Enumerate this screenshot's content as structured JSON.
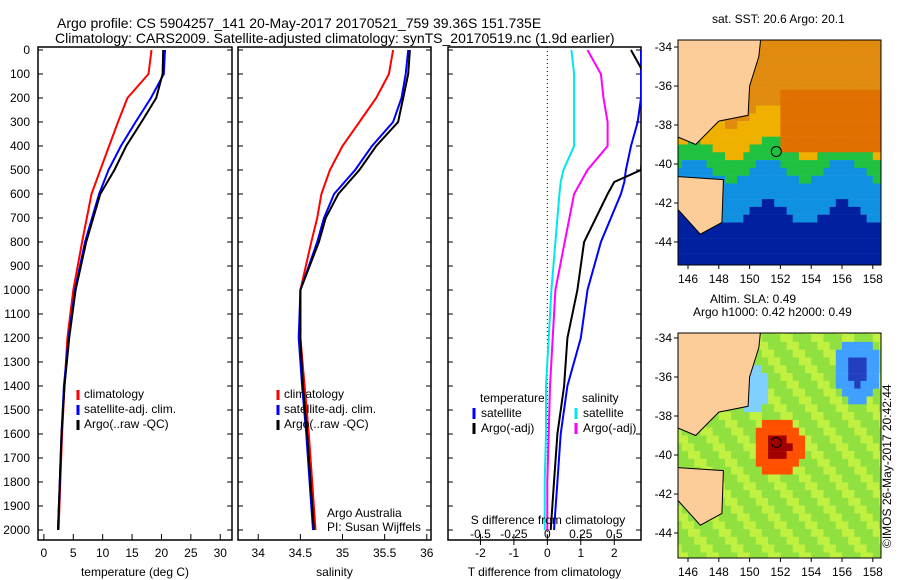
{
  "title_line1": "Argo profile: CS 5904257_141 20-May-2017 20170521_759 39.36S 151.735E",
  "title_line2": "Climatology: CARS2009. Satellite-adjusted climatology: synTS_20170519.nc (1.9d earlier)",
  "colors": {
    "climatology": "#ff0000",
    "satellite": "#0000ff",
    "argo": "#000000",
    "sal_satellite": "#00e5ee",
    "sal_argo": "#ff00ff"
  },
  "chart_data": [
    {
      "type": "line",
      "xlabel": "temperature (deg C)",
      "xlim": [
        -1,
        32
      ],
      "ylim": [
        2050,
        0
      ],
      "xticks": [
        "0",
        "5",
        "10",
        "15",
        "20",
        "25",
        "30"
      ],
      "yticks": [
        "0",
        "100",
        "200",
        "300",
        "400",
        "500",
        "600",
        "700",
        "800",
        "900",
        "1000",
        "1100",
        "1200",
        "1300",
        "1400",
        "1500",
        "1600",
        "1700",
        "1800",
        "1900",
        "2000"
      ],
      "legend": [
        "climatology",
        "satellite-adj. clim.",
        "Argo(..raw -QC)"
      ],
      "depth": [
        0,
        100,
        200,
        300,
        400,
        500,
        600,
        800,
        1000,
        1200,
        1400,
        1600,
        1800,
        2000
      ],
      "series": [
        {
          "name": "climatology",
          "values": [
            18.3,
            17.8,
            14.2,
            12.6,
            11.1,
            9.6,
            8.1,
            6.5,
            5.0,
            4.0,
            3.5,
            3.1,
            2.8,
            2.5
          ]
        },
        {
          "name": "satellite-adj. clim.",
          "values": [
            20.6,
            20.4,
            18.2,
            15.6,
            13.1,
            11.0,
            9.4,
            7.0,
            5.3,
            4.2,
            3.4,
            3.0,
            2.7,
            2.4
          ]
        },
        {
          "name": "Argo(..raw -QC)",
          "values": [
            20.3,
            20.2,
            19.1,
            16.6,
            14.0,
            12.0,
            9.6,
            7.2,
            5.4,
            4.3,
            3.5,
            3.0,
            2.7,
            2.4
          ]
        }
      ]
    },
    {
      "type": "line",
      "xlabel": "salinity",
      "xlim": [
        33.76,
        36.05
      ],
      "ylim": [
        2050,
        0
      ],
      "xticks": [
        "34",
        "34.5",
        "35",
        "35.5",
        "36"
      ],
      "legend": [
        "climatology",
        "satellite-adj. clim.",
        "Argo(..raw -QC)"
      ],
      "annotation": [
        "Argo Australia",
        "PI: Susan Wijffels"
      ],
      "depth": [
        0,
        100,
        200,
        300,
        400,
        500,
        600,
        700,
        800,
        1000,
        1200,
        1400,
        1600,
        1800,
        2000
      ],
      "series": [
        {
          "name": "climatology",
          "values": [
            35.6,
            35.55,
            35.4,
            35.2,
            35.0,
            34.85,
            34.75,
            34.7,
            34.63,
            34.5,
            34.5,
            34.55,
            34.6,
            34.64,
            34.68
          ]
        },
        {
          "name": "satellite-adj. clim.",
          "values": [
            35.78,
            35.75,
            35.7,
            35.6,
            35.35,
            35.15,
            34.9,
            34.78,
            34.7,
            34.5,
            34.48,
            34.52,
            34.57,
            34.61,
            34.65
          ]
        },
        {
          "name": "Argo(..raw -QC)",
          "values": [
            35.8,
            35.78,
            35.72,
            35.66,
            35.4,
            35.2,
            34.95,
            34.8,
            34.72,
            34.5,
            34.5,
            34.53,
            34.58,
            34.62,
            34.66
          ]
        }
      ]
    },
    {
      "type": "line",
      "xlabel": "T difference from climatology",
      "xlabel2": "S difference from climatology",
      "xlim": [
        -2.97,
        2.8
      ],
      "ylim": [
        2050,
        0
      ],
      "xticks": [
        "-2",
        "-1",
        "0",
        "1",
        "2"
      ],
      "xticks2": [
        "-0.5",
        "-0.25",
        "0",
        "0.25",
        "0.5"
      ],
      "legend_titles": [
        "temperature",
        "salinity"
      ],
      "legend": [
        "satellite",
        "Argo(-adj)",
        "satellite",
        "Argo(-adj)"
      ],
      "depth": [
        0,
        100,
        200,
        300,
        400,
        500,
        550,
        600,
        800,
        1000,
        1200,
        1400,
        1600,
        1800,
        2000
      ],
      "series": [
        {
          "name": "temperature satellite",
          "values": [
            2.8,
            2.8,
            2.8,
            2.7,
            2.5,
            2.35,
            2.3,
            2.2,
            1.6,
            1.2,
            1.0,
            0.6,
            0.4,
            0.3,
            0.2
          ]
        },
        {
          "name": "temperature Argo(-adj)",
          "values": [
            2.5,
            2.9,
            2.9,
            2.9,
            2.85,
            2.8,
            2.0,
            1.8,
            1.1,
            0.9,
            0.6,
            0.5,
            0.3,
            0.2,
            0.1
          ]
        },
        {
          "name": "salinity satellite",
          "values": [
            0.18,
            0.2,
            0.2,
            0.2,
            0.2,
            0.12,
            0.1,
            0.09,
            0.06,
            0.03,
            0.01,
            -0.01,
            -0.01,
            -0.02,
            -0.02
          ]
        },
        {
          "name": "salinity Argo(-adj)",
          "values": [
            0.3,
            0.4,
            0.42,
            0.45,
            0.45,
            0.3,
            0.25,
            0.2,
            0.13,
            0.06,
            0.04,
            0.02,
            0.01,
            0.0,
            0.0
          ]
        }
      ]
    }
  ],
  "map_top": {
    "title": "sat. SST: 20.6  Argo: 20.1",
    "lat_ticks": [
      "-34",
      "-36",
      "-38",
      "-40",
      "-42",
      "-44"
    ],
    "lon_ticks": [
      "146",
      "148",
      "150",
      "152",
      "154",
      "156",
      "158"
    ]
  },
  "map_bottom": {
    "title1": "Altim. SLA: 0.49",
    "title2": "Argo h1000: 0.42 h2000: 0.49",
    "lat_ticks": [
      "-34",
      "-36",
      "-38",
      "-40",
      "-42",
      "-44"
    ],
    "lon_ticks": [
      "146",
      "148",
      "150",
      "152",
      "154",
      "156",
      "158"
    ]
  },
  "credit": "©IMOS 26-May-2017 20:42:44"
}
